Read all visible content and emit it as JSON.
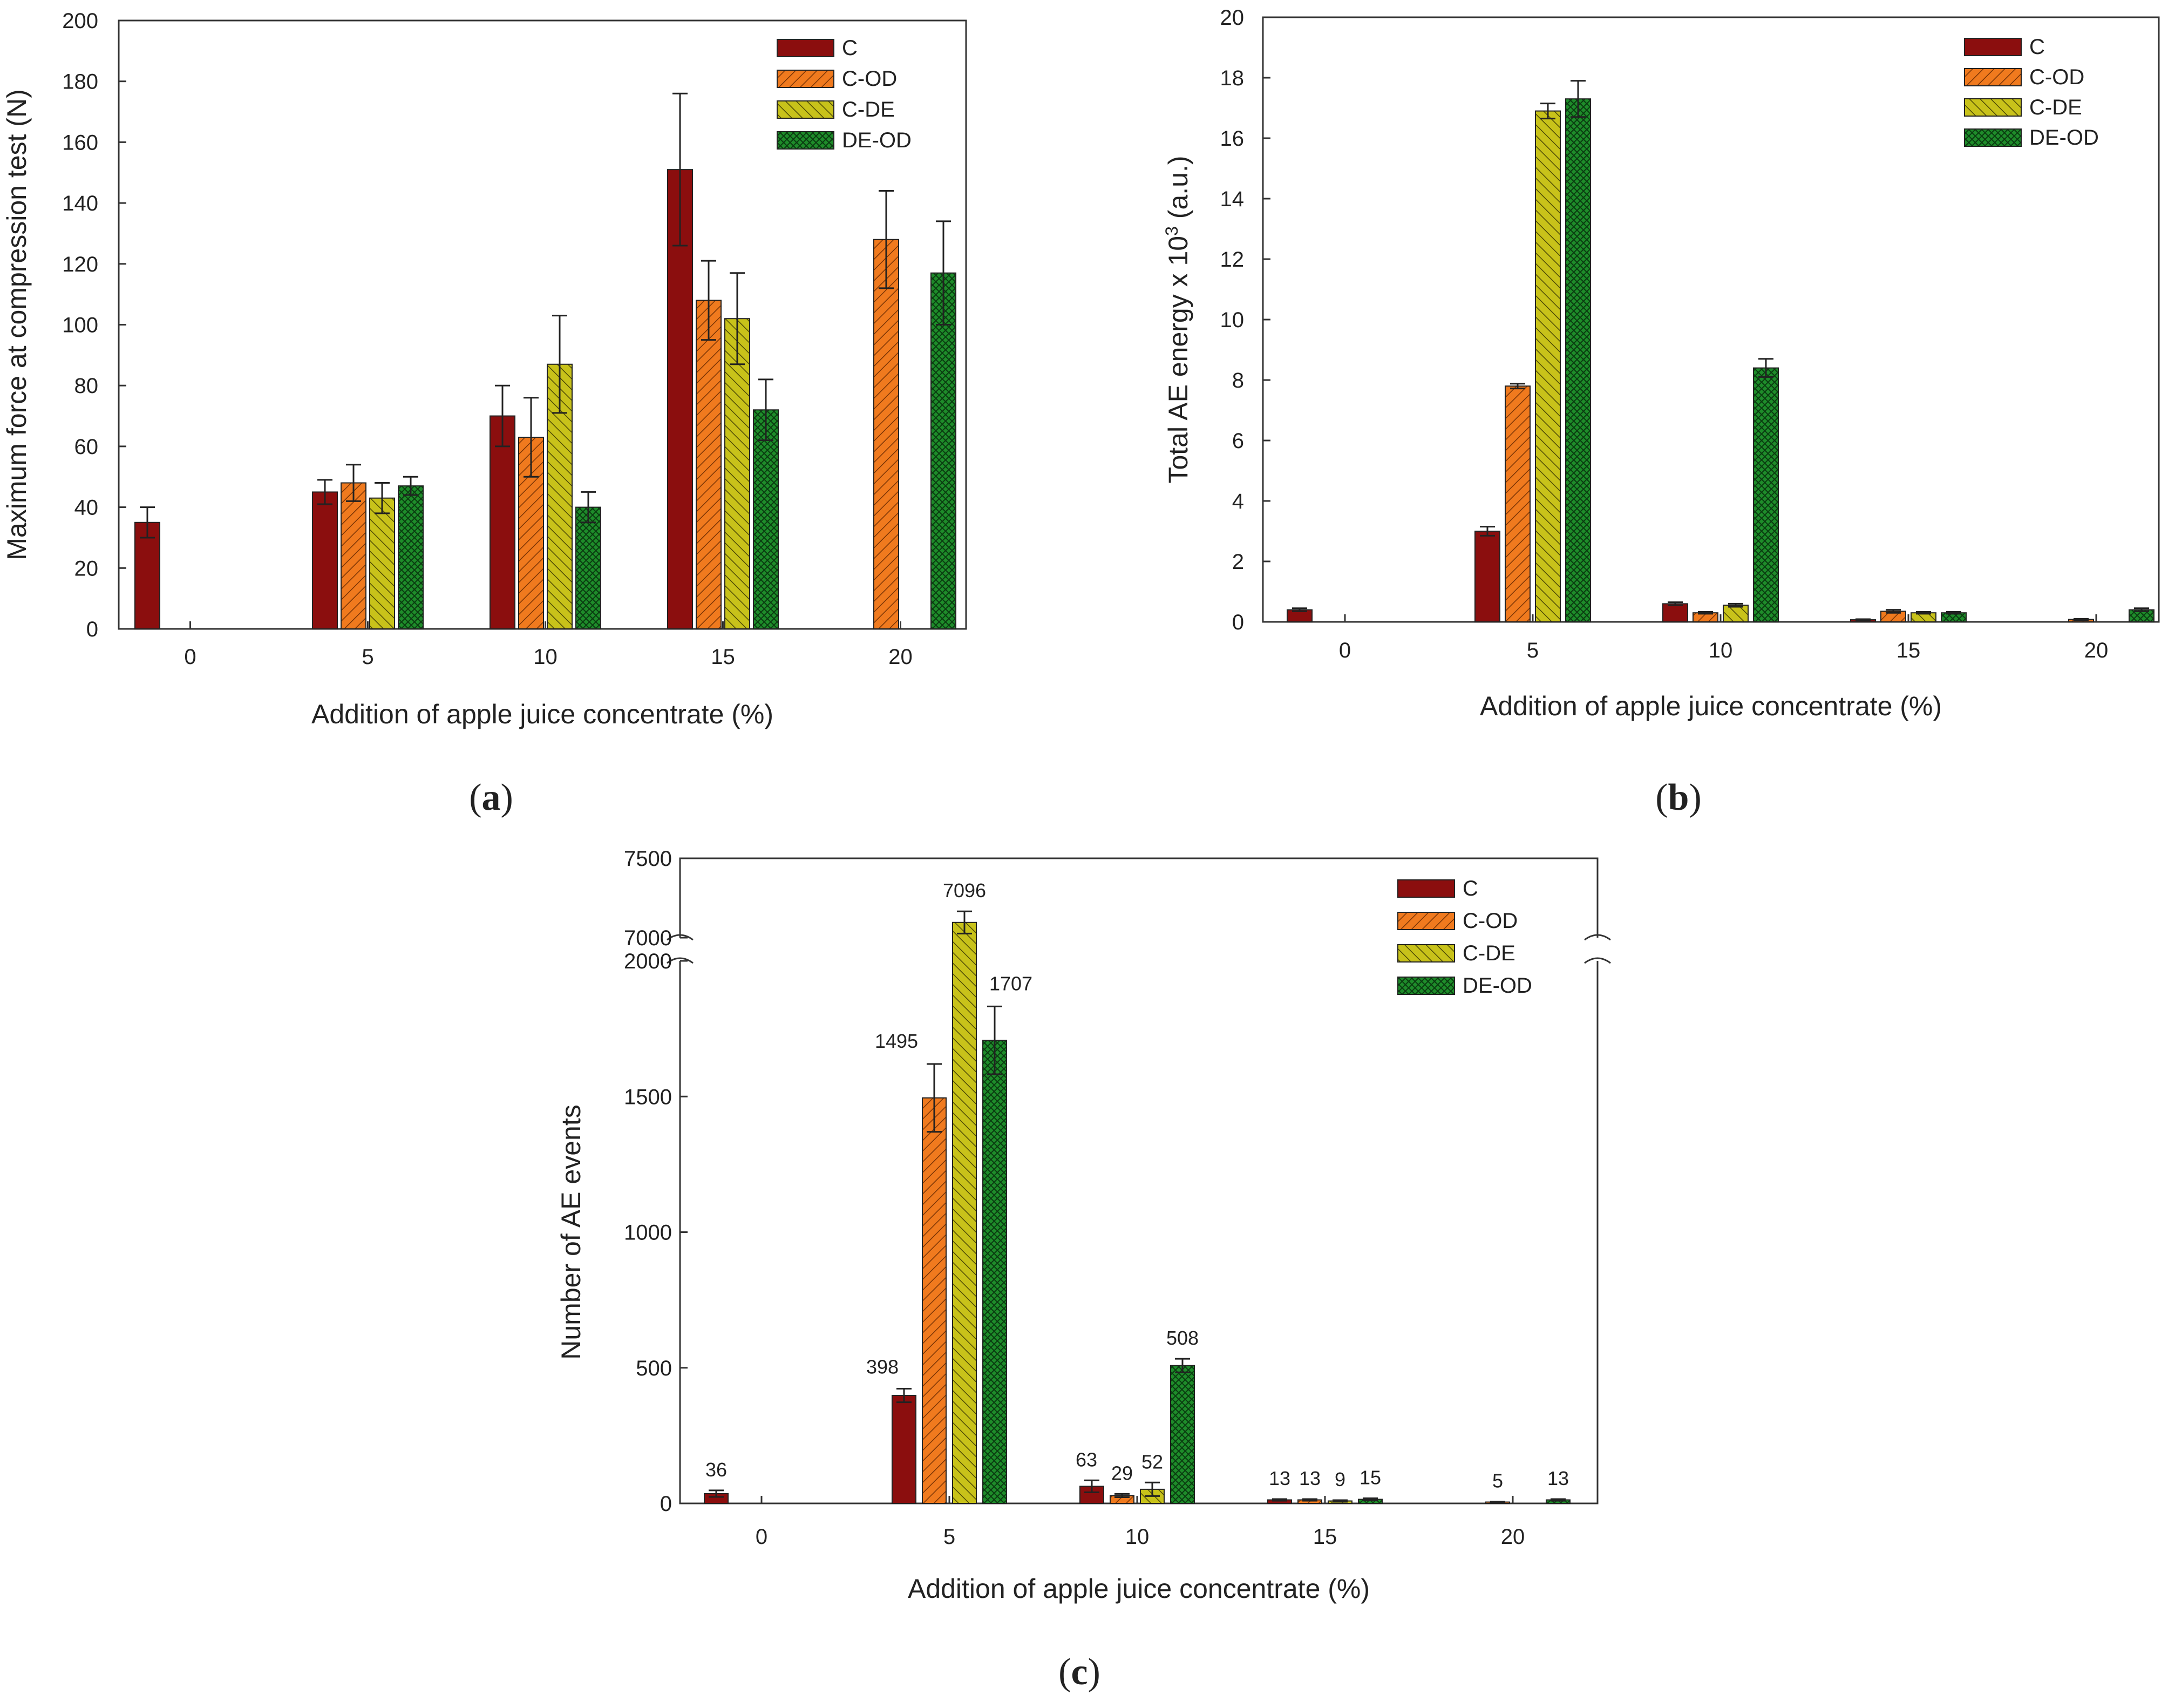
{
  "figure": {
    "series_colors": {
      "C": "#8B0E0E",
      "C-OD": "#F07A1E",
      "C-DE": "#C8C21A",
      "DE-OD": "#1E8C2A"
    },
    "panel_a_caption": {
      "open": "(",
      "letter": "a",
      "close": ")"
    },
    "panel_b_caption": {
      "open": "(",
      "letter": "b",
      "close": ")"
    },
    "panel_c_caption": {
      "open": "(",
      "letter": "c",
      "close": ")"
    }
  },
  "chart_data": [
    {
      "id": "a",
      "type": "bar",
      "title": "",
      "xlabel": "Addition of apple juice concentrate (%)",
      "ylabel": "Maximum force at compression test (N)",
      "categories": [
        "0",
        "5",
        "10",
        "15",
        "20"
      ],
      "ylim": [
        0,
        200
      ],
      "yticks": [
        0,
        20,
        40,
        60,
        80,
        100,
        120,
        140,
        160,
        180,
        200
      ],
      "ytick_labels": [
        "0",
        "20",
        "40",
        "60",
        "80",
        "100",
        "120",
        "140",
        "160",
        "180",
        "200"
      ],
      "legend": [
        "C",
        "C-OD",
        "C-DE",
        "DE-OD"
      ],
      "legend_position": "top-right",
      "series": [
        {
          "name": "C",
          "values": [
            35,
            45,
            70,
            151,
            null
          ],
          "errors": [
            5,
            4,
            10,
            25,
            null
          ]
        },
        {
          "name": "C-OD",
          "values": [
            null,
            48,
            63,
            108,
            128
          ],
          "errors": [
            null,
            6,
            13,
            13,
            16
          ]
        },
        {
          "name": "C-DE",
          "values": [
            null,
            43,
            87,
            102,
            null
          ],
          "errors": [
            null,
            5,
            16,
            15,
            null
          ]
        },
        {
          "name": "DE-OD",
          "values": [
            null,
            47,
            40,
            72,
            117
          ],
          "errors": [
            null,
            3,
            5,
            10,
            17
          ]
        }
      ]
    },
    {
      "id": "b",
      "type": "bar",
      "title": "",
      "xlabel": "Addition of apple juice concentrate (%)",
      "ylabel": "Total AE energy x 10",
      "ylabel_superscript": "3",
      "ylabel_unit": " (a.u.)",
      "categories": [
        "0",
        "5",
        "10",
        "15",
        "20"
      ],
      "ylim": [
        0,
        20
      ],
      "yticks": [
        0,
        2,
        4,
        6,
        8,
        10,
        12,
        14,
        16,
        18,
        20
      ],
      "ytick_labels": [
        "0",
        "2",
        "4",
        "6",
        "8",
        "10",
        "12",
        "14",
        "16",
        "18",
        "20"
      ],
      "legend": [
        "C",
        "C-OD",
        "C-DE",
        "DE-OD"
      ],
      "legend_position": "top-right",
      "series": [
        {
          "name": "C",
          "values": [
            0.4,
            3.0,
            0.6,
            0.07,
            null
          ],
          "errors": [
            0.05,
            0.15,
            0.05,
            0.02,
            null
          ]
        },
        {
          "name": "C-OD",
          "values": [
            null,
            7.8,
            0.3,
            0.35,
            0.08
          ],
          "errors": [
            null,
            0.08,
            0.03,
            0.05,
            0.02
          ]
        },
        {
          "name": "C-DE",
          "values": [
            null,
            16.9,
            0.55,
            0.3,
            null
          ],
          "errors": [
            null,
            0.25,
            0.05,
            0.03,
            null
          ]
        },
        {
          "name": "DE-OD",
          "values": [
            null,
            17.3,
            8.4,
            0.3,
            0.4
          ],
          "errors": [
            null,
            0.6,
            0.3,
            0.03,
            0.05
          ]
        }
      ]
    },
    {
      "id": "c",
      "type": "bar",
      "title": "",
      "xlabel": "Addition of apple juice concentrate (%)",
      "ylabel": "Number of AE events",
      "categories": [
        "0",
        "5",
        "10",
        "15",
        "20"
      ],
      "axis_break": {
        "lower": [
          0,
          2000
        ],
        "upper": [
          7000,
          7500
        ]
      },
      "yticks_lower": [
        0,
        500,
        1000,
        1500,
        2000
      ],
      "ytick_labels_lower": [
        "0",
        "500",
        "1000",
        "1500",
        "2000"
      ],
      "yticks_upper": [
        7000,
        7500
      ],
      "ytick_labels_upper": [
        "7000",
        "7500"
      ],
      "legend": [
        "C",
        "C-OD",
        "C-DE",
        "DE-OD"
      ],
      "legend_position": "top-right",
      "series": [
        {
          "name": "C",
          "values": [
            36,
            398,
            63,
            13,
            null
          ],
          "errors": [
            12,
            25,
            22,
            3,
            null
          ],
          "labels": [
            "36",
            "398",
            "63",
            "13",
            ""
          ]
        },
        {
          "name": "C-OD",
          "values": [
            null,
            1495,
            29,
            13,
            5
          ],
          "errors": [
            null,
            125,
            6,
            3,
            2
          ],
          "labels": [
            "",
            "1495",
            "29",
            "13",
            "5"
          ]
        },
        {
          "name": "C-DE",
          "values": [
            null,
            7096,
            52,
            9,
            null
          ],
          "errors": [
            null,
            70,
            25,
            3,
            null
          ],
          "labels": [
            "",
            "7096",
            "52",
            "9",
            ""
          ]
        },
        {
          "name": "DE-OD",
          "values": [
            null,
            1707,
            508,
            15,
            13
          ],
          "errors": [
            null,
            125,
            25,
            4,
            3
          ],
          "labels": [
            "",
            "1707",
            "508",
            "15",
            "13"
          ]
        }
      ]
    }
  ]
}
